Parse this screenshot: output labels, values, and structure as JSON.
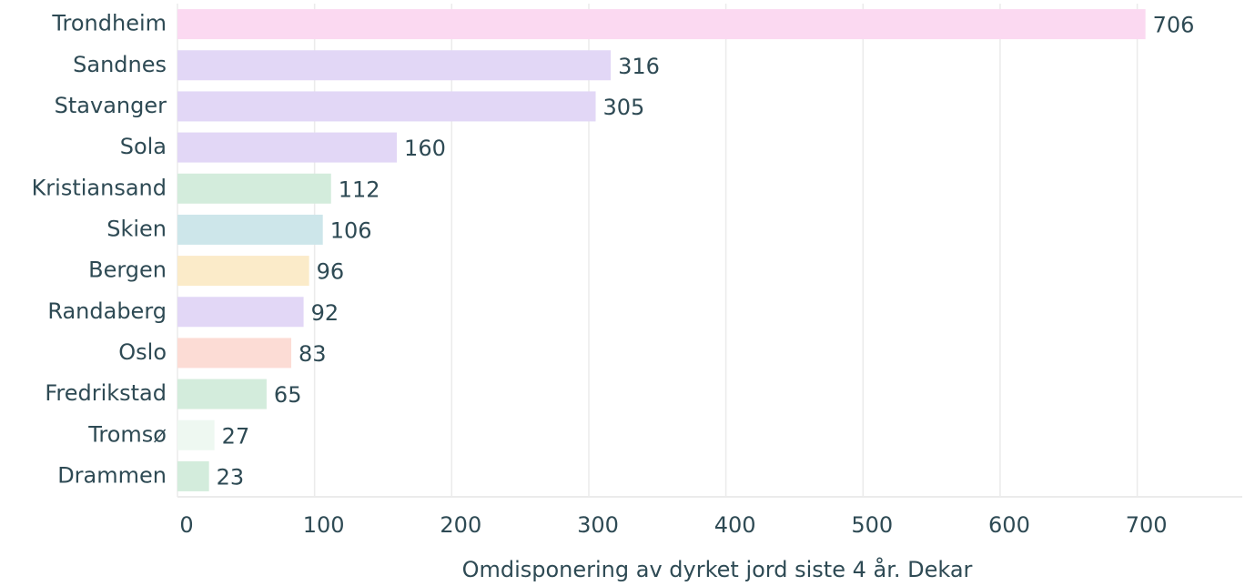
{
  "chart_data": {
    "type": "bar",
    "orientation": "horizontal",
    "x_label": "Omdisponering av dyrket jord siste 4 år. Dekar",
    "categories": [
      "Trondheim",
      "Sandnes",
      "Stavanger",
      "Sola",
      "Kristiansand",
      "Skien",
      "Bergen",
      "Randaberg",
      "Oslo",
      "Fredrikstad",
      "Tromsø",
      "Drammen"
    ],
    "values": [
      706,
      316,
      305,
      160,
      112,
      106,
      96,
      92,
      83,
      65,
      27,
      23
    ],
    "colors": [
      "#fbd9f1",
      "#e2d7f6",
      "#e2d7f6",
      "#e2d7f6",
      "#d3ecdc",
      "#cde6ea",
      "#fbebc9",
      "#e2d7f6",
      "#fcdcd5",
      "#d3ecdc",
      "#eef8f1",
      "#d3ecdc"
    ],
    "xlim": [
      0,
      776.6
    ],
    "xticks": [
      0,
      100,
      200,
      300,
      400,
      500,
      600,
      700
    ],
    "grid": true
  }
}
